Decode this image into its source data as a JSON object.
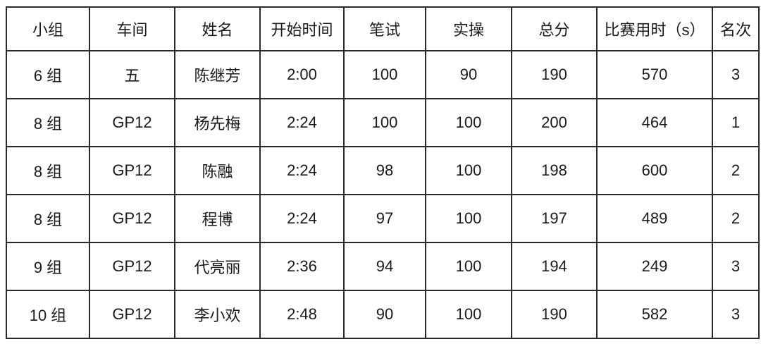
{
  "colors": {
    "background": "#ffffff",
    "border": "#2b2b2b",
    "text": "#1a1a1a"
  },
  "table": {
    "columns": [
      {
        "key": "group",
        "label": "小组"
      },
      {
        "key": "workshop",
        "label": "车间"
      },
      {
        "key": "name",
        "label": "姓名"
      },
      {
        "key": "start-time",
        "label": "开始时间"
      },
      {
        "key": "written",
        "label": "笔试"
      },
      {
        "key": "practical",
        "label": "实操"
      },
      {
        "key": "total",
        "label": "总分"
      },
      {
        "key": "duration",
        "label": "比赛用时（s）"
      },
      {
        "key": "rank",
        "label": "名次"
      }
    ],
    "rows": [
      [
        "6 组",
        "五",
        "陈继芳",
        "2:00",
        "100",
        "90",
        "190",
        "570",
        "3"
      ],
      [
        "8 组",
        "GP12",
        "杨先梅",
        "2:24",
        "100",
        "100",
        "200",
        "464",
        "1"
      ],
      [
        "8 组",
        "GP12",
        "陈融",
        "2:24",
        "98",
        "100",
        "198",
        "600",
        "2"
      ],
      [
        "8 组",
        "GP12",
        "程博",
        "2:24",
        "97",
        "100",
        "197",
        "489",
        "2"
      ],
      [
        "9 组",
        "GP12",
        "代亮丽",
        "2:36",
        "94",
        "100",
        "194",
        "249",
        "3"
      ],
      [
        "10 组",
        "GP12",
        "李小欢",
        "2:48",
        "90",
        "100",
        "190",
        "582",
        "3"
      ]
    ]
  }
}
